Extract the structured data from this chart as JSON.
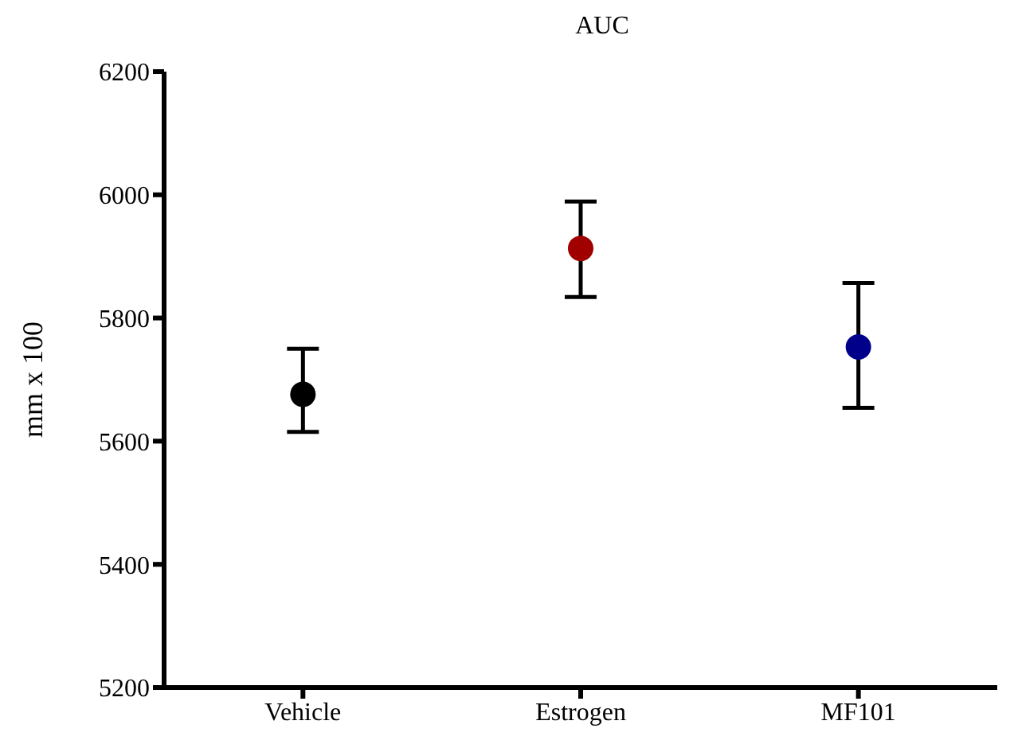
{
  "chart_data": {
    "type": "scatter",
    "title": "AUC",
    "ylabel": "mm x 100",
    "categories": [
      "Vehicle",
      "Estrogen",
      "MF101"
    ],
    "values": [
      5676,
      5913,
      5753
    ],
    "colors": [
      "#000000",
      "#a00000",
      "#00008b"
    ],
    "errors": [
      [
        5615,
        5750
      ],
      [
        5834,
        5989
      ],
      [
        5654,
        5857
      ]
    ],
    "ylim": [
      5200,
      6200
    ],
    "yticks": [
      5200,
      5400,
      5600,
      5800,
      6000,
      6200
    ],
    "marker": "circle"
  }
}
